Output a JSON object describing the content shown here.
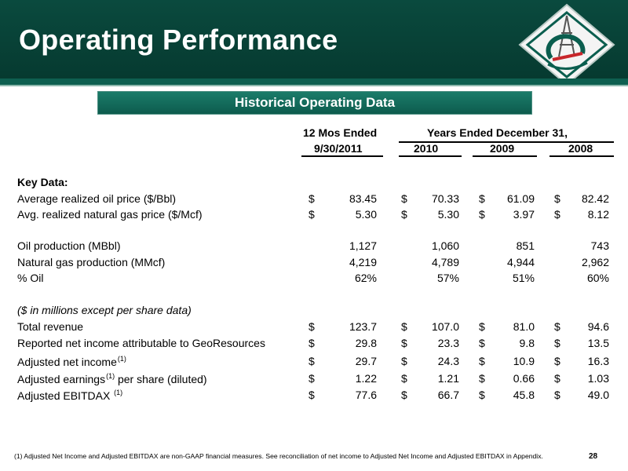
{
  "slide": {
    "title": "Operating Performance",
    "section_title": "Historical Operating Data",
    "page_number": "28",
    "footnote": "(1)   Adjusted  Net Income and Adjusted EBITDAX are non-GAAP financial measures.  See  reconciliation of net income to Adjusted Net Income and Adjusted EBITDAX in Appendix."
  },
  "table": {
    "head_12mos": "12 Mos Ended",
    "head_years": "Years Ended December 31,",
    "col_headers": [
      "9/30/2011",
      "2010",
      "2009",
      "2008"
    ],
    "key_data_label": "Key Data:",
    "millions_label": "($ in millions except per share data)",
    "rows": [
      {
        "label": "Average realized oil price  ($/Bbl)",
        "cur": [
          "$",
          "$",
          "$",
          "$"
        ],
        "values": [
          "83.45",
          "70.33",
          "61.09",
          "82.42"
        ]
      },
      {
        "label": "Avg. realized natural gas price ($/Mcf)",
        "cur": [
          "$",
          "$",
          "$",
          "$"
        ],
        "values": [
          "5.30",
          "5.30",
          "3.97",
          "8.12"
        ]
      },
      {
        "label": "Oil production (MBbl)",
        "cur": [
          "",
          "",
          "",
          ""
        ],
        "values": [
          "1,127",
          "1,060",
          "851",
          "743"
        ]
      },
      {
        "label": "Natural gas production (MMcf)",
        "cur": [
          "",
          "",
          "",
          ""
        ],
        "values": [
          "4,219",
          "4,789",
          "4,944",
          "2,962"
        ]
      },
      {
        "label": "% Oil",
        "cur": [
          "",
          "",
          "",
          ""
        ],
        "values": [
          "62%",
          "57%",
          "51%",
          "60%"
        ]
      },
      {
        "label": "Total revenue",
        "cur": [
          "$",
          "$",
          "$",
          "$"
        ],
        "values": [
          "123.7",
          "107.0",
          "81.0",
          "94.6"
        ]
      },
      {
        "label": "Reported net income attributable to GeoResources",
        "cur": [
          "$",
          "$",
          "$",
          "$"
        ],
        "values": [
          "29.8",
          "23.3",
          "9.8",
          "13.5"
        ]
      },
      {
        "label": "Adjusted net income",
        "sup": "(1)",
        "cur": [
          "$",
          "$",
          "$",
          "$"
        ],
        "values": [
          "29.7",
          "24.3",
          "10.9",
          "16.3"
        ]
      },
      {
        "label": "Adjusted earnings",
        "sup": "(1)",
        "suffix": " per share (diluted)",
        "cur": [
          "$",
          "$",
          "$",
          "$"
        ],
        "values": [
          "1.22",
          "1.21",
          "0.66",
          "1.03"
        ]
      },
      {
        "label": "Adjusted EBITDAX ",
        "sup": "(1)",
        "cur": [
          "$",
          "$",
          "$",
          "$"
        ],
        "values": [
          "77.6",
          "66.7",
          "45.8",
          "49.0"
        ]
      }
    ]
  }
}
